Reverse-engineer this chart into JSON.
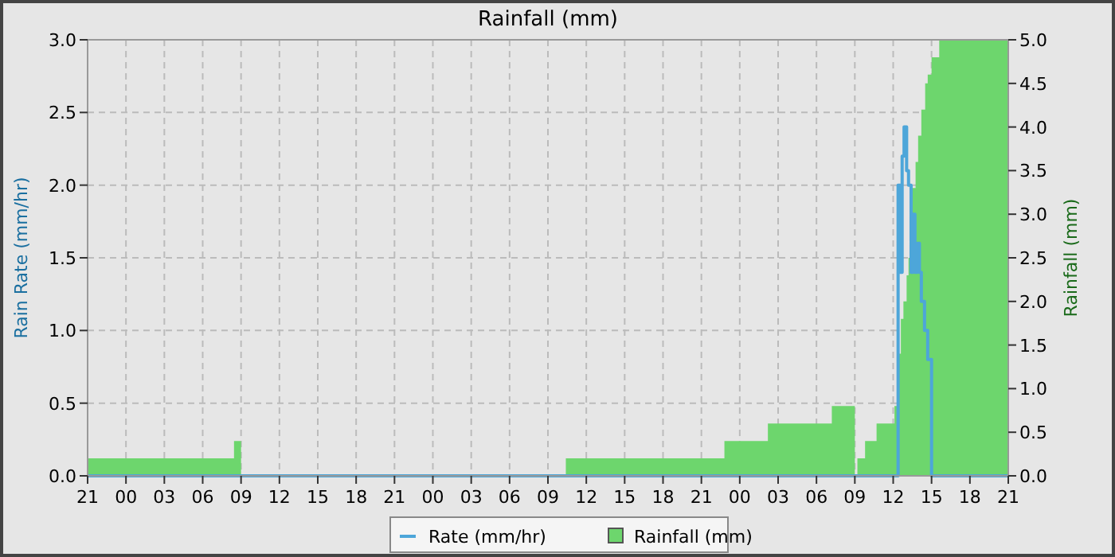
{
  "chart_data": {
    "type": "step",
    "title": "Rainfall (mm)",
    "ylabel": "Rain Rate (mm/hr)",
    "y2label": "Rainfall (mm)",
    "xlim": [
      "2000-01-01T21:00",
      "2000-01-04T21:00"
    ],
    "xticks": [
      {
        "value": "2000-01-01T21:00",
        "label": "21"
      },
      {
        "value": "2000-01-02T00:00",
        "label": "00"
      },
      {
        "value": "2000-01-02T03:00",
        "label": "03"
      },
      {
        "value": "2000-01-02T06:00",
        "label": "06"
      },
      {
        "value": "2000-01-02T09:00",
        "label": "09"
      },
      {
        "value": "2000-01-02T12:00",
        "label": "12"
      },
      {
        "value": "2000-01-02T15:00",
        "label": "15"
      },
      {
        "value": "2000-01-02T18:00",
        "label": "18"
      },
      {
        "value": "2000-01-02T21:00",
        "label": "21"
      },
      {
        "value": "2000-01-03T00:00",
        "label": "00"
      },
      {
        "value": "2000-01-03T03:00",
        "label": "03"
      },
      {
        "value": "2000-01-03T06:00",
        "label": "06"
      },
      {
        "value": "2000-01-03T09:00",
        "label": "09"
      },
      {
        "value": "2000-01-03T12:00",
        "label": "12"
      },
      {
        "value": "2000-01-03T15:00",
        "label": "15"
      },
      {
        "value": "2000-01-03T18:00",
        "label": "18"
      },
      {
        "value": "2000-01-03T21:00",
        "label": "21"
      },
      {
        "value": "2000-01-04T00:00",
        "label": "00"
      },
      {
        "value": "2000-01-04T03:00",
        "label": "03"
      },
      {
        "value": "2000-01-04T06:00",
        "label": "06"
      },
      {
        "value": "2000-01-04T09:00",
        "label": "09"
      },
      {
        "value": "2000-01-04T12:00",
        "label": "12"
      },
      {
        "value": "2000-01-04T15:00",
        "label": "15"
      },
      {
        "value": "2000-01-04T18:00",
        "label": "18"
      },
      {
        "value": "2000-01-04T21:00",
        "label": "21"
      }
    ],
    "ylim": [
      0,
      3
    ],
    "yticks": [
      {
        "value": 0,
        "label": "0.0"
      },
      {
        "value": 0.5,
        "label": "0.5"
      },
      {
        "value": 1,
        "label": "1.0"
      },
      {
        "value": 1.5,
        "label": "1.5"
      },
      {
        "value": 2,
        "label": "2.0"
      },
      {
        "value": 2.5,
        "label": "2.5"
      },
      {
        "value": 3,
        "label": "3.0"
      }
    ],
    "y2lim": [
      0,
      5
    ],
    "y2ticks": [
      {
        "value": 0,
        "label": "0.0"
      },
      {
        "value": 0.5,
        "label": "0.5"
      },
      {
        "value": 1,
        "label": "1.0"
      },
      {
        "value": 1.5,
        "label": "1.5"
      },
      {
        "value": 2,
        "label": "2.0"
      },
      {
        "value": 2.5,
        "label": "2.5"
      },
      {
        "value": 3,
        "label": "3.0"
      },
      {
        "value": 3.5,
        "label": "3.5"
      },
      {
        "value": 4,
        "label": "4.0"
      },
      {
        "value": 4.5,
        "label": "4.5"
      },
      {
        "value": 5,
        "label": "5.0"
      }
    ],
    "grid": true,
    "legend": "bottom",
    "marker": "none",
    "line_style": "solid",
    "series": [
      {
        "name": "Rainfall (mm)",
        "type": "area",
        "axis": "y2",
        "color": "#6dd66d",
        "x": [
          "2000-01-01T21:00",
          "2000-01-02T08:27",
          "2000-01-02T09:00",
          "2000-01-03T10:24",
          "2000-01-03T22:48",
          "2000-01-04T02:12",
          "2000-01-04T07:12",
          "2000-01-04T09:00",
          "2000-01-04T09:12",
          "2000-01-04T09:48",
          "2000-01-04T10:42",
          "2000-01-04T12:06",
          "2000-01-04T12:18",
          "2000-01-04T12:36",
          "2000-01-04T12:48",
          "2000-01-04T13:03",
          "2000-01-04T13:12",
          "2000-01-04T13:24",
          "2000-01-04T13:30",
          "2000-01-04T13:45",
          "2000-01-04T13:57",
          "2000-01-04T14:12",
          "2000-01-04T14:30",
          "2000-01-04T14:42",
          "2000-01-04T15:00",
          "2000-01-04T15:36",
          "2000-01-04T21:00"
        ],
        "values": [
          0.2,
          0.4,
          0,
          0.2,
          0.4,
          0.6,
          0.8,
          0,
          0.2,
          0.4,
          0.6,
          0.8,
          1.4,
          1.8,
          2,
          2.3,
          2.5,
          3,
          3.3,
          3.6,
          3.9,
          4.2,
          4.5,
          4.6,
          4.8,
          5,
          5
        ]
      },
      {
        "name": "Rate (mm/hr)",
        "color": "#4da6d9",
        "x": [
          "2000-01-01T21:00",
          "2000-01-04T12:23",
          "2000-01-04T12:33",
          "2000-01-04T12:42",
          "2000-01-04T12:51",
          "2000-01-04T13:03",
          "2000-01-04T13:12",
          "2000-01-04T13:24",
          "2000-01-04T13:33",
          "2000-01-04T13:42",
          "2000-01-04T13:54",
          "2000-01-04T14:03",
          "2000-01-04T14:12",
          "2000-01-04T14:27",
          "2000-01-04T14:42",
          "2000-01-04T15:00",
          "2000-01-04T21:00"
        ],
        "values": [
          0,
          2,
          1.4,
          2.2,
          2.4,
          2.1,
          2,
          1.4,
          1.8,
          1.4,
          1.6,
          1.4,
          1.2,
          1,
          0.8,
          0,
          0
        ]
      }
    ]
  }
}
